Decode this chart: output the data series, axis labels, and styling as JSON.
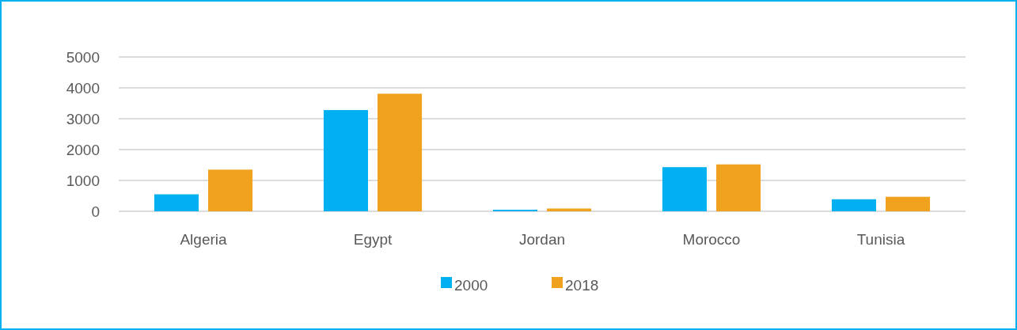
{
  "chart_data": {
    "type": "bar",
    "categories": [
      "Algeria",
      "Egypt",
      "Jordan",
      "Morocco",
      "Tunisia"
    ],
    "series": [
      {
        "name": "2000",
        "color": "#00b0f0",
        "values": [
          550,
          3280,
          50,
          1430,
          390
        ]
      },
      {
        "name": "2018",
        "color": "#f0a21e",
        "values": [
          1350,
          3810,
          90,
          1520,
          470
        ]
      }
    ],
    "ylim": [
      0,
      5000
    ],
    "yticks": [
      0,
      1000,
      2000,
      3000,
      4000,
      5000
    ],
    "grid": "y",
    "legend": "bottom"
  }
}
